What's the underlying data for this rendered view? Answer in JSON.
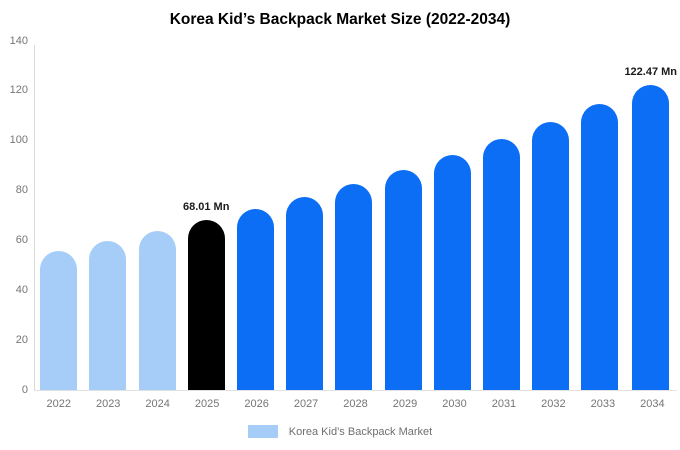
{
  "title": "Korea Kid’s Backpack Market Size (2022-2034)",
  "legend": {
    "label": "Korea Kid’s Backpack Market",
    "swatch_color": "#a6cdf7"
  },
  "colors": {
    "historical_bar": "#a6cdf7",
    "base_year_bar": "#000000",
    "forecast_bar": "#0b6ef5",
    "axis_line": "#d9d9d9",
    "tick_text": "#757575",
    "value_label_text": "#1a1a1a"
  },
  "chart_data": {
    "type": "bar",
    "title": "Korea Kid’s Backpack Market Size (2022-2034)",
    "xlabel": "",
    "ylabel": "",
    "categories": [
      "2022",
      "2023",
      "2024",
      "2025",
      "2026",
      "2027",
      "2028",
      "2029",
      "2030",
      "2031",
      "2032",
      "2033",
      "2034"
    ],
    "values": [
      55.9,
      59.7,
      63.7,
      68.01,
      72.6,
      77.5,
      82.7,
      88.3,
      94.3,
      100.6,
      107.4,
      114.7,
      122.47
    ],
    "bar_colors": [
      "#a6cdf7",
      "#a6cdf7",
      "#a6cdf7",
      "#000000",
      "#0b6ef5",
      "#0b6ef5",
      "#0b6ef5",
      "#0b6ef5",
      "#0b6ef5",
      "#0b6ef5",
      "#0b6ef5",
      "#0b6ef5",
      "#0b6ef5"
    ],
    "data_labels": [
      "",
      "",
      "",
      "68.01 Mn",
      "",
      "",
      "",
      "",
      "",
      "",
      "",
      "",
      "122.47 Mn"
    ],
    "ylim": [
      0,
      140
    ],
    "yticks": [
      0,
      20,
      40,
      60,
      80,
      100,
      120,
      140
    ],
    "grid": false,
    "legend_position": "bottom",
    "legend_entries": [
      "Korea Kid’s Backpack Market"
    ]
  }
}
